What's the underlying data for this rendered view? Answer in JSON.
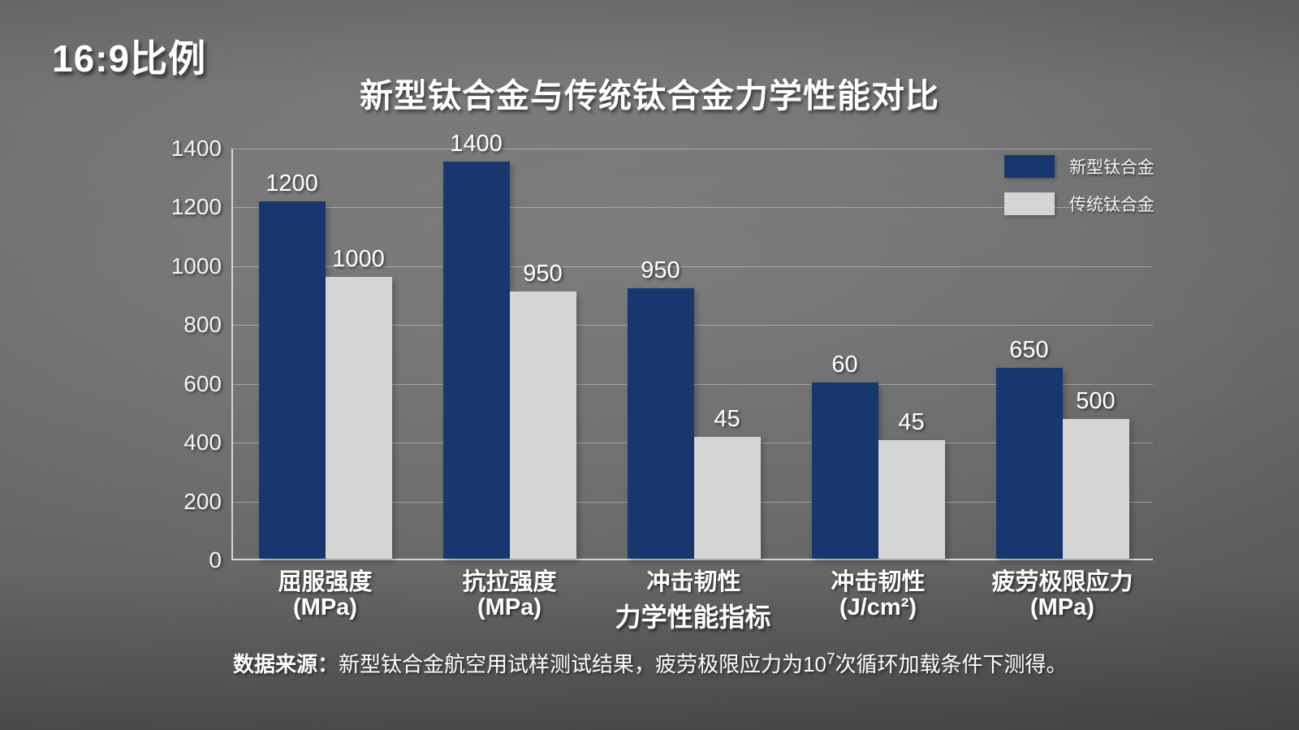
{
  "page": {
    "corner_label": "16:9比例"
  },
  "note": {
    "prefix": "数据来源：",
    "body1": "新型钛合金航空用试样测试结果，疲劳极限应力为10",
    "sup": "7",
    "body2": "次循环加载条件下测得。"
  },
  "colors": {
    "new_alloy": "#16386f",
    "traditional_alloy": "#d5d6d4",
    "background_gray": "#656565",
    "axis_line": "#d6d6d6",
    "text": "#ffffff"
  },
  "chart_data": {
    "type": "bar",
    "title": "新型钛合金与传统钛合金力学性能对比",
    "xlabel": "力学性能指标",
    "ylabel": "",
    "ylim": [
      0,
      1400
    ],
    "yticks": [
      0,
      200,
      400,
      600,
      800,
      1000,
      1200,
      1400
    ],
    "grid": true,
    "legend_position": "top-right",
    "categories": [
      {
        "line1": "屈服强度",
        "line2": "(MPa)"
      },
      {
        "line1": "抗拉强度",
        "line2": "(MPa)"
      },
      {
        "line1": "冲击韧性",
        "line2": ""
      },
      {
        "line1": "冲击韧性",
        "line2": "(J/cm²)"
      },
      {
        "line1": "疲劳极限应力",
        "line2": "(MPa)"
      }
    ],
    "series": [
      {
        "name": "新型钛合金",
        "color": "#16386f",
        "values": [
          1200,
          1400,
          950,
          60,
          650
        ],
        "drawn_axis_units": [
          1215,
          1350,
          920,
          600,
          648
        ]
      },
      {
        "name": "传统钛合金",
        "color": "#d5d6d4",
        "values": [
          1000,
          950,
          45,
          45,
          500
        ],
        "drawn_axis_units": [
          958,
          908,
          415,
          402,
          475
        ]
      }
    ]
  }
}
